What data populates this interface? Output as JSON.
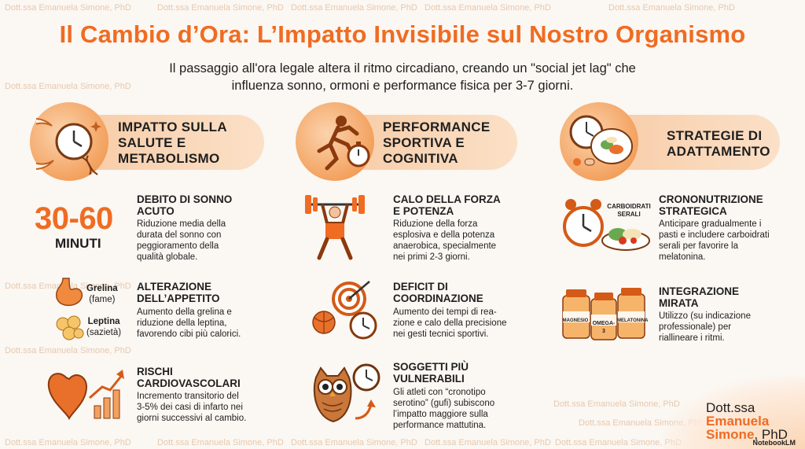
{
  "watermark": "Dott.ssa Emanuela Simone, PhD",
  "title": "Il Cambio d’Ora: L’Impatto Invisibile sul Nostro Organismo",
  "subtitle_line1": "Il passaggio all'ora legale altera il ritmo circadiano, creando un \"social jet lag\" che",
  "subtitle_line2": "influenza sonno, ormoni e performance fisica per 3-7 giorni.",
  "columns": [
    {
      "heading_l1": "IMPATTO SULLA",
      "heading_l2": "SALUTE E",
      "heading_l3": "METABOLISMO",
      "icon": "clock-dna-icon",
      "items": [
        {
          "title_l1": "DEBITO DI SONNO",
          "title_l2": "ACUTO",
          "text": [
            "Riduzione media della",
            "durata del sonno con",
            "peggioramento della",
            "qualità globale."
          ]
        },
        {
          "title_l1": "ALTERAZIONE",
          "title_l2": "DELL’APPETITO",
          "text": [
            "Aumento della grelina e",
            "riduzione della leptina,",
            "favorendo cibi più calorici."
          ]
        },
        {
          "title_l1": "RISCHI",
          "title_l2": "CARDIOVASCOLARI",
          "text": [
            "Incremento transitorio del",
            "3-5% dei casi di infarto nei",
            "giorni successivi al cambio."
          ]
        }
      ],
      "big_number": "30-60",
      "big_unit": "MINUTI",
      "grelina": "Grelina",
      "grelina_note": "(fame)",
      "leptina": "Leptina",
      "leptina_note": "(sazietà)"
    },
    {
      "heading_l1": "PERFORMANCE",
      "heading_l2": "SPORTIVA E",
      "heading_l3": "COGNITIVA",
      "icon": "runner-stopwatch-icon",
      "items": [
        {
          "title_l1": "CALO DELLA FORZA",
          "title_l2": "E POTENZA",
          "text": [
            "Riduzione della forza",
            "esplosiva e della potenza",
            "anaerobica, specialmente",
            "nei primi 2-3 giorni."
          ]
        },
        {
          "title_l1": "DEFICIT DI",
          "title_l2": "COORDINAZIONE",
          "text": [
            "Aumento dei tempi di rea-",
            "zione e calo della precisione",
            "nei gesti tecnici sportivi."
          ]
        },
        {
          "title_l1": "SOGGETTI PIÙ",
          "title_l2": "VULNERABILI",
          "text": [
            "Gli atleti con “cronotipo",
            "serotino” (gufi) subiscono",
            "l’impatto maggiore sulla",
            "performance mattutina."
          ]
        }
      ]
    },
    {
      "heading_l1": "STRATEGIE DI",
      "heading_l2": "ADATTAMENTO",
      "icon": "clock-plate-icon",
      "items": [
        {
          "title_l1": "CRONONUTRIZIONE",
          "title_l2": "STRATEGICA",
          "text": [
            "Anticipare gradualmente i",
            "pasti e includere carboidrati",
            "serali per favorire la",
            "melatonina."
          ]
        },
        {
          "title_l1": "INTEGRAZIONE",
          "title_l2": "MIRATA",
          "text": [
            "Utilizzo (su indicazione",
            "professionale) per",
            "riallineare i ritmi."
          ]
        }
      ],
      "carbs_label_l1": "CARBOIDRATI",
      "carbs_label_l2": "SERALI",
      "bottles": [
        "MAGNESIO",
        "OMEGA-3",
        "MELATONINA"
      ]
    }
  ],
  "author_l1": "Dott.ssa",
  "author_l2": "Emanuela",
  "author_l3": "Simone",
  "author_suffix": ", PhD",
  "brand": "NotebookLM",
  "colors": {
    "accent": "#ef6c22",
    "pill": "#f7c9a2",
    "background": "#fbf7f2"
  }
}
